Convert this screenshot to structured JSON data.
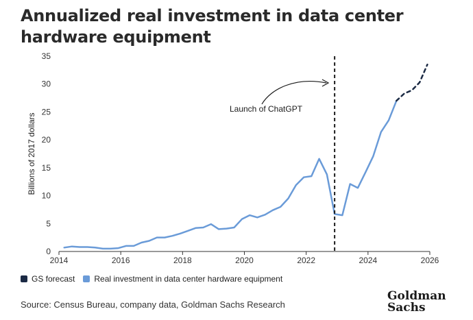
{
  "header": {
    "title": "Annualized real investment in data center hardware equipment"
  },
  "legend": {
    "forecast_label": "GS forecast",
    "actual_label": "Real investment in data center hardware equipment",
    "forecast_color": "#1b2a44",
    "actual_color": "#6a9bd8"
  },
  "footer": {
    "source": "Source: Census Bureau, company data, Goldman Sachs Research"
  },
  "logo": {
    "line1": "Goldman",
    "line2": "Sachs"
  },
  "chart_data": {
    "type": "line",
    "title": "Annualized real investment in data center hardware equipment",
    "xlabel": "",
    "ylabel": "Billions of 2017 dollars",
    "xlim": [
      2014,
      2026
    ],
    "ylim": [
      0,
      35
    ],
    "x_ticks": [
      2014,
      2016,
      2018,
      2020,
      2022,
      2024,
      2026
    ],
    "y_ticks": [
      0,
      5,
      10,
      15,
      20,
      25,
      30,
      35
    ],
    "grid": false,
    "legend_position": "bottom-left",
    "series": [
      {
        "name": "Real investment in data center hardware equipment",
        "style": "solid",
        "color": "#6a9bd8",
        "points": [
          [
            2014.17,
            0.7
          ],
          [
            2014.42,
            0.9
          ],
          [
            2014.67,
            0.8
          ],
          [
            2014.92,
            0.8
          ],
          [
            2015.17,
            0.7
          ],
          [
            2015.42,
            0.5
          ],
          [
            2015.67,
            0.5
          ],
          [
            2015.92,
            0.6
          ],
          [
            2016.17,
            1.0
          ],
          [
            2016.42,
            1.0
          ],
          [
            2016.67,
            1.6
          ],
          [
            2016.92,
            1.9
          ],
          [
            2017.17,
            2.5
          ],
          [
            2017.42,
            2.5
          ],
          [
            2017.67,
            2.8
          ],
          [
            2017.92,
            3.2
          ],
          [
            2018.17,
            3.7
          ],
          [
            2018.42,
            4.2
          ],
          [
            2018.67,
            4.3
          ],
          [
            2018.92,
            4.9
          ],
          [
            2019.17,
            4.0
          ],
          [
            2019.42,
            4.1
          ],
          [
            2019.67,
            4.3
          ],
          [
            2019.92,
            5.8
          ],
          [
            2020.17,
            6.5
          ],
          [
            2020.42,
            6.1
          ],
          [
            2020.67,
            6.6
          ],
          [
            2020.92,
            7.4
          ],
          [
            2021.17,
            8.0
          ],
          [
            2021.42,
            9.5
          ],
          [
            2021.67,
            11.9
          ],
          [
            2021.92,
            13.3
          ],
          [
            2022.17,
            13.5
          ],
          [
            2022.42,
            16.6
          ],
          [
            2022.67,
            13.8
          ],
          [
            2022.92,
            6.7
          ],
          [
            2023.17,
            6.5
          ],
          [
            2023.42,
            12.1
          ],
          [
            2023.67,
            11.4
          ],
          [
            2023.92,
            14.2
          ],
          [
            2024.17,
            17.1
          ],
          [
            2024.42,
            21.4
          ],
          [
            2024.67,
            23.5
          ],
          [
            2024.92,
            27.0
          ]
        ]
      },
      {
        "name": "GS forecast",
        "style": "dashed",
        "color": "#1b2a44",
        "points": [
          [
            2024.92,
            27.0
          ],
          [
            2025.17,
            28.3
          ],
          [
            2025.42,
            28.9
          ],
          [
            2025.67,
            30.3
          ],
          [
            2025.92,
            33.5
          ]
        ]
      }
    ],
    "annotations": [
      {
        "text": "Launch of ChatGPT",
        "x": 2022.92,
        "kind": "vertical-dashed-line"
      }
    ]
  }
}
